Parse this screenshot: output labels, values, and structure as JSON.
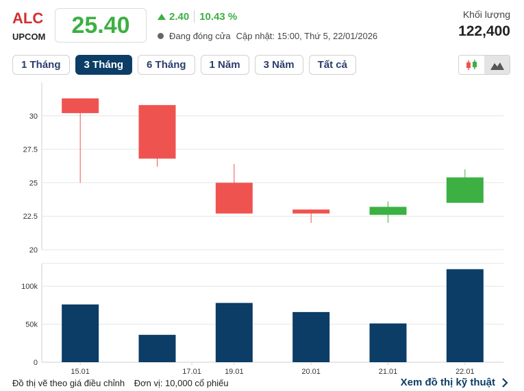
{
  "header": {
    "ticker": "ALC",
    "exchange": "UPCOM",
    "price": "25.40",
    "change": "2.40",
    "change_pct": "10.43 %",
    "status": "Đang đóng cửa",
    "updated": "Cập nhật: 15:00, Thứ 5, 22/01/2026",
    "volume_label": "Khối lượng",
    "volume_value": "122,400"
  },
  "tabs": [
    {
      "label": "1 Tháng"
    },
    {
      "label": "3 Tháng"
    },
    {
      "label": "6 Tháng"
    },
    {
      "label": "1 Năm"
    },
    {
      "label": "3 Năm"
    },
    {
      "label": "Tất cả"
    }
  ],
  "active_tab": "3 Tháng",
  "colors": {
    "up": "#3cb043",
    "down": "#ef5350",
    "volume": "#0b3d66",
    "accent": "#d32f2f"
  },
  "chart_data": [
    {
      "type": "candlestick",
      "title": "",
      "ylim": [
        20,
        32.5
      ],
      "yticks": [
        "30",
        "27.5",
        "25",
        "22.5",
        "20"
      ],
      "candles": [
        {
          "open": 31.3,
          "close": 30.2,
          "high": 31.3,
          "low": 25.0
        },
        {
          "open": 30.8,
          "close": 26.8,
          "high": 30.8,
          "low": 26.2
        },
        {
          "open": 25.0,
          "close": 22.7,
          "high": 26.4,
          "low": 22.7
        },
        {
          "open": 23.0,
          "close": 22.7,
          "high": 23.0,
          "low": 22.0
        },
        {
          "open": 22.6,
          "close": 23.2,
          "high": 23.6,
          "low": 22.0
        },
        {
          "open": 23.5,
          "close": 25.4,
          "high": 26.0,
          "low": 23.5
        }
      ]
    },
    {
      "type": "bar",
      "title": "",
      "ylim": [
        0,
        130000
      ],
      "yticks": [
        "100k",
        "50k",
        "0"
      ],
      "values": [
        76000,
        36000,
        78000,
        66000,
        51000,
        122400
      ]
    }
  ],
  "x_labels": [
    "15.01",
    "17.01",
    "19.01",
    "20.01",
    "21.01",
    "22.01"
  ],
  "footer": {
    "adjusted_note": "Đồ thị vẽ theo giá điều chỉnh",
    "unit_note": "Đơn vị: 10,000 cổ phiếu",
    "technical_link": "Xem đồ thị kỹ thuật"
  }
}
